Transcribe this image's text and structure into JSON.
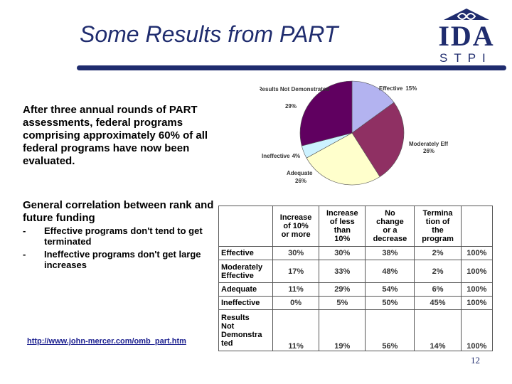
{
  "slide": {
    "title": "Some Results from PART",
    "logo": {
      "letters": "IDA",
      "sub": "STPI"
    },
    "paragraph1": "After three annual rounds of PART assessments, federal programs comprising approximately 60% of all federal programs have now been evaluated.",
    "paragraph2": "General correlation between rank and future funding",
    "bullets": [
      "Effective programs don't tend to get terminated",
      "Ineffective programs don't get large increases"
    ],
    "bullet_marker": "-",
    "link": "http://www.john-mercer.com/omb_part.htm",
    "page_number": "12"
  },
  "chart_data": {
    "type": "pie",
    "categories": [
      "Effective",
      "Moderately Effective",
      "Adequate",
      "Ineffective",
      "Results Not Demonstrated"
    ],
    "values": [
      15,
      26,
      26,
      4,
      29
    ],
    "labels": [
      {
        "name": "Effective",
        "value": "15%"
      },
      {
        "name": "Moderately Effective",
        "value": "26%"
      },
      {
        "name": "Adequate",
        "value": "26%"
      },
      {
        "name": "Ineffective",
        "value": "4%"
      },
      {
        "name": "Results Not Demonstrated",
        "value": "29%"
      }
    ],
    "colors": [
      "#b3b3f0",
      "#8f3063",
      "#ffffcc",
      "#ccf2ff",
      "#600060"
    ]
  },
  "table": {
    "headers": [
      "Increase of 10% or more",
      "Increase of less than 10%",
      "No change or a decrease",
      "Termination of the program",
      ""
    ],
    "header_lines": [
      [
        "Increase",
        "of 10%",
        "or more"
      ],
      [
        "Increase",
        "of less",
        "than",
        "10%"
      ],
      [
        "No",
        "change",
        "or a",
        "decrease"
      ],
      [
        "Termina",
        "tion of",
        "the",
        "program"
      ],
      []
    ],
    "rows": [
      {
        "label": "Effective",
        "label_lines": [
          "Effective"
        ],
        "values": [
          "30%",
          "30%",
          "38%",
          "2%",
          "100%"
        ]
      },
      {
        "label": "Moderately Effective",
        "label_lines": [
          "Moderately",
          "Effective"
        ],
        "values": [
          "17%",
          "33%",
          "48%",
          "2%",
          "100%"
        ]
      },
      {
        "label": "Adequate",
        "label_lines": [
          "Adequate"
        ],
        "values": [
          "11%",
          "29%",
          "54%",
          "6%",
          "100%"
        ]
      },
      {
        "label": "Ineffective",
        "label_lines": [
          "Ineffective"
        ],
        "values": [
          "0%",
          "5%",
          "50%",
          "45%",
          "100%"
        ]
      },
      {
        "label": "Results Not Demonstrated",
        "label_lines": [
          "Results",
          "Not",
          "Demonstra",
          "ted"
        ],
        "values": [
          "11%",
          "19%",
          "56%",
          "14%",
          "100%"
        ]
      }
    ]
  },
  "colors": {
    "brand": "#1f2c6e",
    "link": "#1b1f8f"
  }
}
